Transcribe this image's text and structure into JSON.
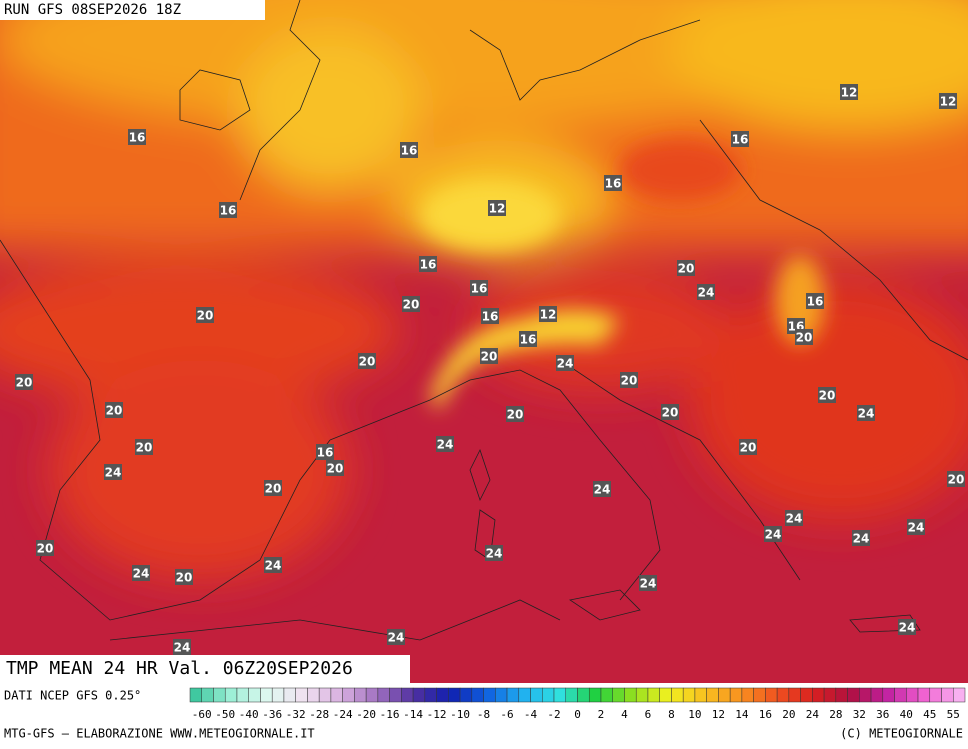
{
  "header": {
    "run": "RUN GFS 08SEP2026 18Z"
  },
  "map": {
    "title": "TMP MEAN 24 HR Val. 06Z20SEP2026",
    "labels": [
      12,
      12,
      12,
      12,
      16,
      16,
      16,
      16,
      16,
      16,
      16,
      16,
      16,
      16,
      16,
      16,
      20,
      20,
      20,
      20,
      20,
      20,
      20,
      20,
      20,
      20,
      20,
      20,
      20,
      20,
      20,
      20,
      20,
      20,
      20,
      24,
      24,
      24,
      24,
      24,
      24,
      24,
      24,
      24,
      24,
      24,
      24,
      24,
      24,
      24,
      24,
      24
    ]
  },
  "legend": {
    "source": "DATI NCEP GFS 0.25°",
    "ticks": [
      -60,
      -50,
      -40,
      -36,
      -32,
      -28,
      -24,
      -20,
      -16,
      -14,
      -12,
      -10,
      -8,
      -6,
      -4,
      -2,
      0,
      2,
      4,
      6,
      8,
      10,
      12,
      14,
      16,
      20,
      24,
      28,
      32,
      36,
      40,
      45,
      55
    ]
  },
  "footer": {
    "credit": "MTG-GFS — ELABORAZIONE WWW.METEOGIORNALE.IT",
    "copyright": "(C) METEOGIORNALE"
  }
}
